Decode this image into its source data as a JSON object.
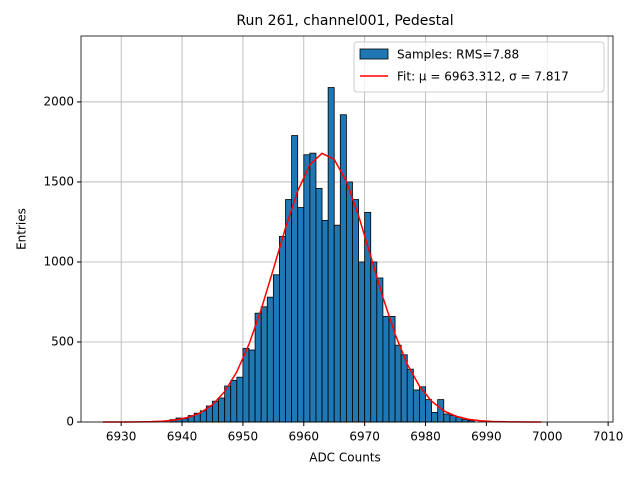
{
  "chart_data": {
    "type": "histogram",
    "title": "Run 261, channel001, Pedestal",
    "xlabel": "ADC Counts",
    "ylabel": "Entries",
    "name": "Samples: RMS=7.88",
    "color": "#1f77b4",
    "edgecolor": "#000000",
    "bins": [
      6938,
      6939,
      6940,
      6941,
      6942,
      6943,
      6944,
      6945,
      6946,
      6947,
      6948,
      6949,
      6950,
      6951,
      6952,
      6953,
      6954,
      6955,
      6956,
      6957,
      6958,
      6959,
      6960,
      6961,
      6962,
      6963,
      6964,
      6965,
      6966,
      6967,
      6968,
      6969,
      6970,
      6971,
      6972,
      6973,
      6974,
      6975,
      6976,
      6977,
      6978,
      6979,
      6980,
      6981,
      6982,
      6983,
      6984,
      6985,
      6986,
      6987,
      6988
    ],
    "values": [
      15,
      25,
      20,
      40,
      55,
      70,
      100,
      130,
      150,
      225,
      260,
      280,
      460,
      450,
      680,
      720,
      780,
      920,
      1160,
      1390,
      1790,
      1340,
      1670,
      1680,
      1460,
      1260,
      2090,
      1230,
      1920,
      1500,
      1390,
      1000,
      1310,
      1000,
      900,
      660,
      660,
      480,
      420,
      330,
      200,
      220,
      140,
      60,
      140,
      50,
      40,
      30,
      15,
      10
    ],
    "fit": {
      "type": "line",
      "name": "Fit: μ = 6963.312, σ = 7.817",
      "color": "#ff0000",
      "x": [
        6927,
        6929,
        6931,
        6933,
        6935,
        6937,
        6939,
        6941,
        6943,
        6945,
        6947,
        6949,
        6951,
        6953,
        6955,
        6957,
        6959,
        6961,
        6963,
        6965,
        6967,
        6969,
        6971,
        6973,
        6975,
        6977,
        6979,
        6981,
        6983,
        6985,
        6987,
        6989,
        6991,
        6993,
        6995,
        6997,
        6999
      ],
      "values": [
        0,
        0.1,
        0.3,
        0.9,
        2.4,
        5.8,
        13.3,
        28.7,
        57.5,
        108,
        190,
        314,
        486,
        704,
        955,
        1213,
        1443,
        1608,
        1679,
        1641,
        1503,
        1289,
        1036,
        779,
        549,
        362,
        224,
        130,
        70,
        36,
        17,
        7.6,
        3.2,
        1.2,
        0.5,
        0.2,
        0.1
      ]
    },
    "xlim": [
      6923.4,
      7010.8
    ],
    "ylim": [
      0,
      2412
    ],
    "xticks": [
      6930,
      6940,
      6950,
      6960,
      6970,
      6980,
      6990,
      7000,
      7010
    ],
    "yticks": [
      0,
      500,
      1000,
      1500,
      2000
    ],
    "grid": true,
    "legend": "upper right"
  }
}
